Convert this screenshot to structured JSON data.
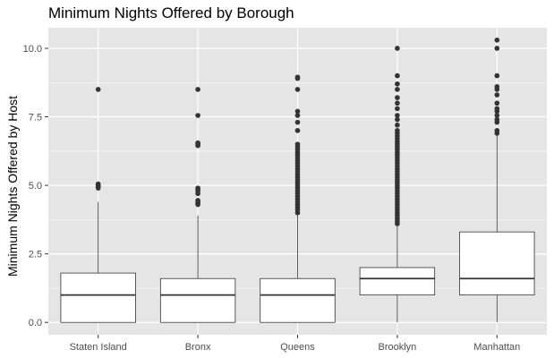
{
  "chart_data": {
    "type": "box",
    "title": "Minimum Nights Offered by Borough",
    "xlabel": "",
    "ylabel": "Minimum Nights Offered by Host",
    "ylim": [
      -0.45,
      10.75
    ],
    "yticks": [
      "0.0",
      "2.5",
      "5.0",
      "7.5",
      "10.0"
    ],
    "ytick_values": [
      0,
      2.5,
      5,
      7.5,
      10
    ],
    "grid": true,
    "colors": {
      "panel": "#e5e5e5",
      "grid_major": "#ffffff",
      "box_fill": "#ffffff",
      "box_line": "#333333",
      "outlier": "#333333"
    },
    "categories": [
      "Staten Island",
      "Bronx",
      "Queens",
      "Brooklyn",
      "Manhattan"
    ],
    "boxes": [
      {
        "category": "Staten Island",
        "whisker_low": 0,
        "q1": 0,
        "median": 1,
        "q3": 1.8,
        "whisker_high": 4.4,
        "outliers": [
          4.9,
          4.95,
          5.0,
          5.05,
          8.5
        ]
      },
      {
        "category": "Bronx",
        "whisker_low": 0,
        "q1": 0,
        "median": 1,
        "q3": 1.6,
        "whisker_high": 3.9,
        "outliers": [
          4.3,
          4.35,
          4.4,
          4.45,
          4.7,
          4.8,
          4.85,
          4.9,
          6.45,
          6.5,
          6.55,
          7.55,
          8.5
        ]
      },
      {
        "category": "Queens",
        "whisker_low": 0,
        "q1": 0,
        "median": 1,
        "q3": 1.6,
        "whisker_high": 3.95,
        "outliers": [
          4.0,
          4.1,
          4.2,
          4.3,
          4.4,
          4.5,
          4.6,
          4.7,
          4.8,
          4.9,
          5.0,
          5.1,
          5.2,
          5.3,
          5.4,
          5.5,
          5.6,
          5.7,
          5.8,
          5.9,
          6.0,
          6.1,
          6.2,
          6.3,
          6.4,
          6.5,
          7.0,
          7.3,
          7.55,
          7.7,
          8.5,
          8.9,
          8.95
        ]
      },
      {
        "category": "Brooklyn",
        "whisker_low": 0,
        "q1": 1,
        "median": 1.6,
        "q3": 2.0,
        "whisker_high": 3.5,
        "outliers": [
          3.6,
          3.7,
          3.8,
          3.9,
          4.0,
          4.1,
          4.2,
          4.3,
          4.4,
          4.5,
          4.6,
          4.7,
          4.8,
          4.9,
          5.0,
          5.1,
          5.2,
          5.3,
          5.4,
          5.5,
          5.6,
          5.7,
          5.8,
          5.9,
          6.0,
          6.1,
          6.2,
          6.3,
          6.4,
          6.5,
          6.6,
          6.7,
          6.8,
          6.9,
          7.0,
          7.2,
          7.4,
          7.55,
          7.8,
          8.0,
          8.2,
          8.5,
          8.7,
          9.0,
          10.0
        ]
      },
      {
        "category": "Manhattan",
        "whisker_low": 0,
        "q1": 1,
        "median": 1.6,
        "q3": 3.3,
        "whisker_high": 6.85,
        "outliers": [
          6.9,
          7.0,
          7.3,
          7.4,
          7.55,
          7.7,
          7.8,
          8.0,
          8.3,
          8.5,
          8.6,
          9.0,
          10.0,
          10.3
        ]
      }
    ]
  }
}
